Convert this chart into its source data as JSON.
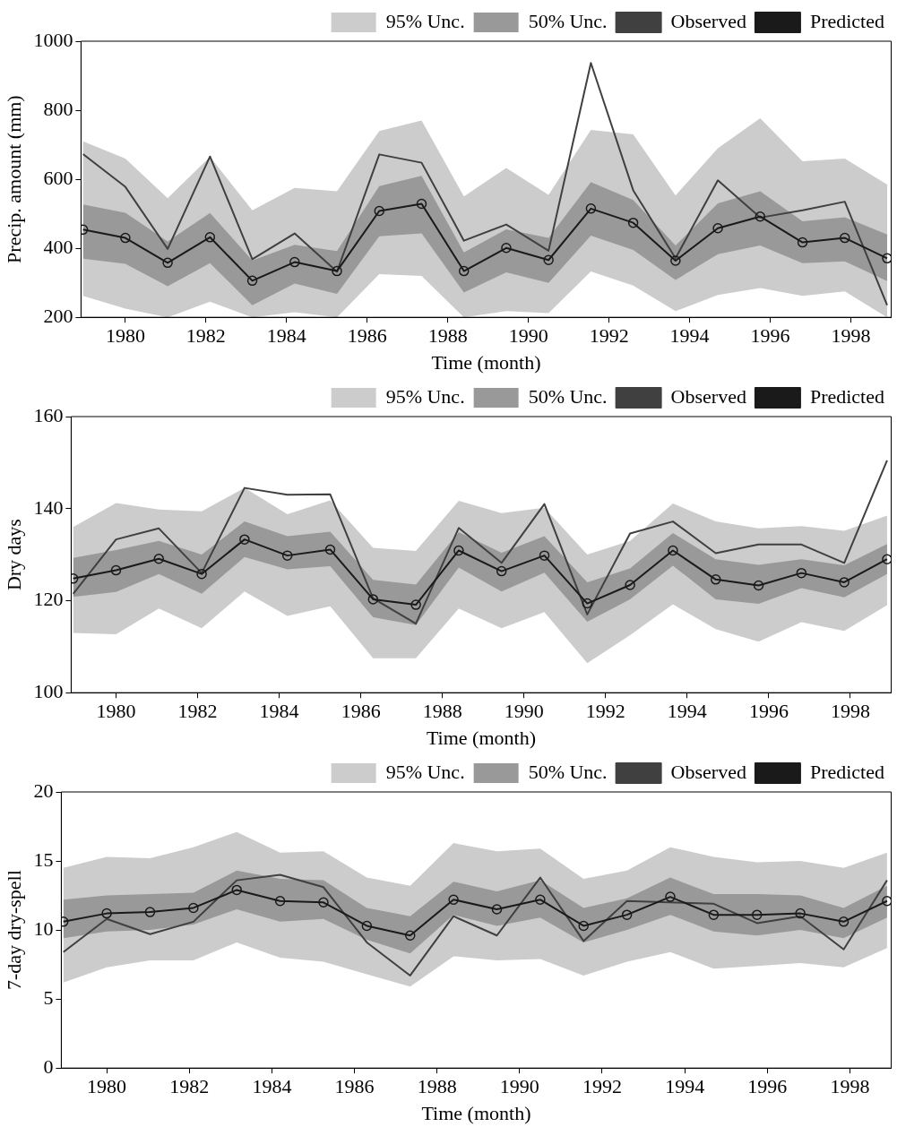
{
  "chart_data": [
    {
      "type": "line",
      "xlabel": "Time (month)",
      "ylabel": "Precip. amount (mm)",
      "legend": "top right",
      "xlim": [
        1978.9,
        1999.0
      ],
      "xticks": [
        1980,
        1982,
        1984,
        1986,
        1988,
        1990,
        1992,
        1994,
        1996,
        1998
      ],
      "ylim": [
        200,
        1000
      ],
      "yticks": [
        200,
        400,
        600,
        800,
        1000
      ],
      "x": [
        1978.95,
        1980.0,
        1981.05,
        1982.1,
        1983.15,
        1984.2,
        1985.25,
        1986.3,
        1987.35,
        1988.4,
        1989.45,
        1990.5,
        1991.55,
        1992.6,
        1993.65,
        1994.7,
        1995.75,
        1996.8,
        1997.85,
        1998.9
      ],
      "series": [
        {
          "name": "95% Unc.",
          "type": "area",
          "color": "#cccccc",
          "values": [
            null,
            null,
            null,
            null,
            null,
            null,
            null,
            null,
            null,
            null,
            null,
            null,
            null,
            null,
            null,
            null,
            null,
            null,
            null,
            null
          ],
          "lower": [
            262,
            225,
            200,
            245,
            200,
            215,
            200,
            325,
            320,
            200,
            218,
            212,
            333,
            292,
            218,
            265,
            285,
            262,
            275,
            200
          ],
          "upper": [
            710,
            660,
            545,
            665,
            510,
            575,
            565,
            740,
            770,
            550,
            633,
            555,
            743,
            730,
            553,
            690,
            777,
            652,
            660,
            585
          ]
        },
        {
          "name": "50% Unc.",
          "type": "area",
          "color": "#999999",
          "values": [
            null,
            null,
            null,
            null,
            null,
            null,
            null,
            null,
            null,
            null,
            null,
            null,
            null,
            null,
            null,
            null,
            null,
            null,
            null,
            null
          ],
          "lower": [
            370,
            355,
            290,
            357,
            235,
            298,
            268,
            435,
            443,
            272,
            330,
            300,
            437,
            395,
            308,
            383,
            408,
            357,
            362,
            305
          ],
          "upper": [
            527,
            503,
            420,
            502,
            365,
            410,
            392,
            580,
            610,
            388,
            455,
            430,
            592,
            540,
            408,
            530,
            565,
            478,
            490,
            440
          ]
        },
        {
          "name": "Observed",
          "type": "line",
          "color": "#404040",
          "marker": "none",
          "values": [
            673,
            578,
            398,
            666,
            368,
            443,
            332,
            672,
            648,
            422,
            469,
            393,
            937,
            568,
            371,
            597,
            489,
            510,
            535,
            235
          ]
        },
        {
          "name": "Predicted",
          "type": "line",
          "color": "#1a1a1a",
          "marker": "circle",
          "values": [
            454,
            430,
            358,
            432,
            306,
            360,
            334,
            508,
            529,
            334,
            401,
            366,
            515,
            474,
            364,
            458,
            492,
            417,
            430,
            371
          ]
        }
      ]
    },
    {
      "type": "line",
      "xlabel": "Time (month)",
      "ylabel": "Dry days",
      "legend": "top right",
      "xlim": [
        1978.9,
        1999.0
      ],
      "xticks": [
        1980,
        1982,
        1984,
        1986,
        1988,
        1990,
        1992,
        1994,
        1996,
        1998
      ],
      "ylim": [
        100,
        160
      ],
      "yticks": [
        100,
        120,
        140,
        160
      ],
      "x": [
        1978.95,
        1980.0,
        1981.05,
        1982.1,
        1983.15,
        1984.2,
        1985.25,
        1986.3,
        1987.35,
        1988.4,
        1989.45,
        1990.5,
        1991.55,
        1992.6,
        1993.65,
        1994.7,
        1995.75,
        1996.8,
        1997.85,
        1998.9
      ],
      "series": [
        {
          "name": "95% Unc.",
          "type": "area",
          "color": "#cccccc",
          "values": [
            null,
            null,
            null,
            null,
            null,
            null,
            null,
            null,
            null,
            null,
            null,
            null,
            null,
            null,
            null,
            null,
            null,
            null,
            null,
            null
          ],
          "lower": [
            113,
            112.7,
            118.3,
            114,
            122,
            116.7,
            118.8,
            107.5,
            107.5,
            118.3,
            114,
            117.5,
            106.4,
            112.5,
            119.2,
            113.8,
            111.1,
            115.3,
            113.4,
            119
          ],
          "upper": [
            136,
            141.2,
            139.8,
            139.4,
            144.5,
            138.8,
            141.8,
            131.5,
            130.8,
            141.7,
            139,
            140.2,
            130,
            133,
            141.1,
            137.2,
            135.7,
            136.2,
            135.2,
            138.5
          ]
        },
        {
          "name": "50% Unc.",
          "type": "area",
          "color": "#999999",
          "values": [
            null,
            null,
            null,
            null,
            null,
            null,
            null,
            null,
            null,
            null,
            null,
            null,
            null,
            null,
            null,
            null,
            null,
            null,
            null,
            null
          ],
          "lower": [
            120.8,
            121.9,
            125.8,
            121.5,
            129.5,
            126.8,
            127.5,
            116.4,
            114.7,
            127.2,
            122,
            126.1,
            115.4,
            120.3,
            127.6,
            120.3,
            119.3,
            122.7,
            120.7,
            125.8
          ],
          "upper": [
            129.3,
            131,
            133,
            130,
            137.2,
            134,
            135,
            124.5,
            123.5,
            134.9,
            130.4,
            134,
            124,
            127,
            134.7,
            129,
            127.8,
            129,
            127.7,
            132.3
          ]
        },
        {
          "name": "Observed",
          "type": "line",
          "color": "#404040",
          "marker": "none",
          "values": [
            121.5,
            133.3,
            135.7,
            126,
            144.5,
            143,
            143.1,
            120.5,
            115,
            135.8,
            128.2,
            141,
            117,
            134.6,
            137.2,
            130.3,
            132.2,
            132.2,
            128.2,
            150.5
          ]
        },
        {
          "name": "Predicted",
          "type": "line",
          "color": "#1a1a1a",
          "marker": "circle",
          "values": [
            124.8,
            126.6,
            129.1,
            125.8,
            133.3,
            129.8,
            131.1,
            120.3,
            119.1,
            130.9,
            126.4,
            129.8,
            119.4,
            123.4,
            130.9,
            124.6,
            123.3,
            126.0,
            124.0,
            129.0
          ]
        }
      ]
    },
    {
      "type": "line",
      "xlabel": "Time (month)",
      "ylabel": "7-day dry-spell",
      "legend": "top right",
      "xlim": [
        1978.9,
        1999.0
      ],
      "xticks": [
        1980,
        1982,
        1984,
        1986,
        1988,
        1990,
        1992,
        1994,
        1996,
        1998
      ],
      "ylim": [
        0,
        20
      ],
      "yticks": [
        0,
        5,
        10,
        15,
        20
      ],
      "x": [
        1978.95,
        1980.0,
        1981.05,
        1982.1,
        1983.15,
        1984.2,
        1985.25,
        1986.3,
        1987.35,
        1988.4,
        1989.45,
        1990.5,
        1991.55,
        1992.6,
        1993.65,
        1994.7,
        1995.75,
        1996.8,
        1997.85,
        1998.9
      ],
      "series": [
        {
          "name": "95% Unc.",
          "type": "area",
          "color": "#cccccc",
          "values": [
            null,
            null,
            null,
            null,
            null,
            null,
            null,
            null,
            null,
            null,
            null,
            null,
            null,
            null,
            null,
            null,
            null,
            null,
            null,
            null
          ],
          "lower": [
            6.2,
            7.3,
            7.8,
            7.8,
            9.1,
            8.0,
            7.7,
            6.8,
            5.9,
            8.1,
            7.8,
            7.9,
            6.7,
            7.7,
            8.4,
            7.2,
            7.4,
            7.6,
            7.3,
            8.7
          ],
          "upper": [
            14.5,
            15.3,
            15.2,
            16.0,
            17.1,
            15.6,
            15.7,
            13.8,
            13.2,
            16.3,
            15.7,
            15.9,
            13.7,
            14.3,
            16.0,
            15.3,
            14.9,
            15.0,
            14.5,
            15.6
          ]
        },
        {
          "name": "50% Unc.",
          "type": "area",
          "color": "#999999",
          "values": [
            null,
            null,
            null,
            null,
            null,
            null,
            null,
            null,
            null,
            null,
            null,
            null,
            null,
            null,
            null,
            null,
            null,
            null,
            null,
            null
          ],
          "lower": [
            9.4,
            9.9,
            10.0,
            10.4,
            11.5,
            10.6,
            10.8,
            9.3,
            8.3,
            11.1,
            10.3,
            10.9,
            9.1,
            10.0,
            11.1,
            9.9,
            9.6,
            10.0,
            9.4,
            10.9
          ],
          "upper": [
            12.2,
            12.5,
            12.6,
            12.7,
            14.3,
            13.7,
            13.6,
            11.6,
            11.0,
            13.5,
            12.8,
            13.6,
            11.6,
            12.3,
            13.8,
            12.6,
            12.6,
            12.5,
            11.6,
            13.2
          ]
        },
        {
          "name": "Observed",
          "type": "line",
          "color": "#404040",
          "marker": "none",
          "values": [
            8.4,
            10.8,
            9.7,
            10.6,
            13.6,
            14.0,
            13.1,
            9.1,
            6.7,
            11.0,
            9.6,
            13.8,
            9.2,
            12.1,
            12.0,
            11.9,
            10.5,
            11.0,
            8.6,
            13.6
          ]
        },
        {
          "name": "Predicted",
          "type": "line",
          "color": "#1a1a1a",
          "marker": "circle",
          "values": [
            10.6,
            11.2,
            11.3,
            11.6,
            12.9,
            12.1,
            12.0,
            10.3,
            9.6,
            12.2,
            11.5,
            12.2,
            10.3,
            11.1,
            12.4,
            11.1,
            11.1,
            11.2,
            10.6,
            12.1
          ]
        }
      ]
    }
  ]
}
